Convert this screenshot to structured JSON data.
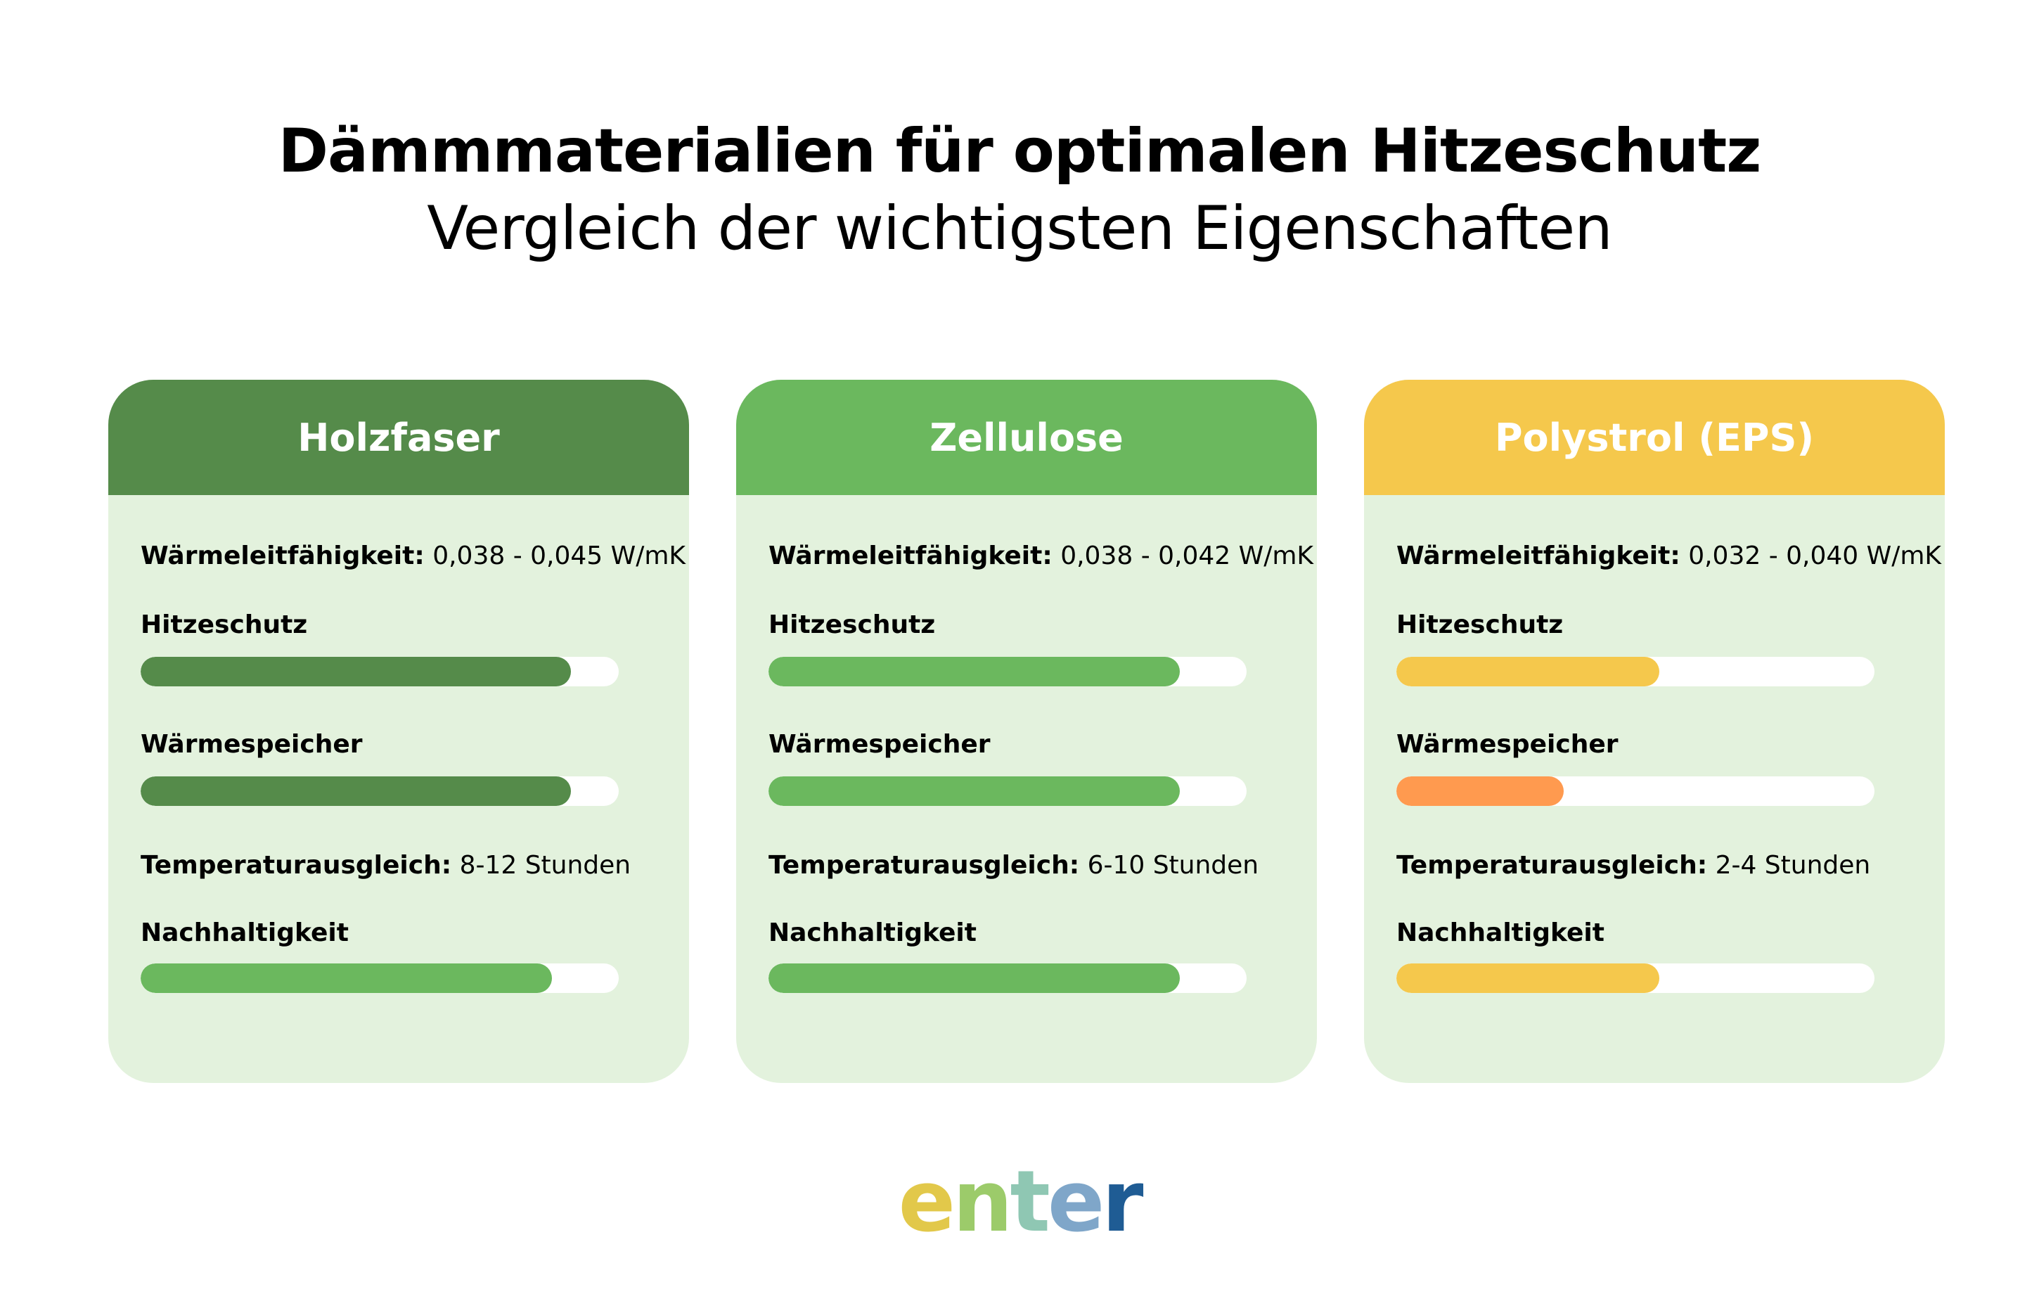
{
  "header": {
    "title": "Dämmmaterialien für optimalen Hitzeschutz",
    "subtitle": "Vergleich der wichtigsten Eigenschaften"
  },
  "cards": [
    {
      "name": "Holzfaser",
      "header_color": "#558b4a",
      "conductivity_label": "Wärmeleitfähigkeit:",
      "conductivity_value": "0,038 - 0,045 W/mK",
      "heat_protection_label": "Hitzeschutz",
      "heat_protection_level": 0.9,
      "heat_protection_color": "#558b4a",
      "heat_storage_label": "Wärmespeicher",
      "heat_storage_level": 0.9,
      "heat_storage_color": "#558b4a",
      "temp_label": "Temperaturausgleich:",
      "temp_value": "8-12 Stunden",
      "sustainability_label": "Nachhaltigkeit",
      "sustainability_level": 0.86,
      "sustainability_color": "#6bb85e"
    },
    {
      "name": "Zellulose",
      "header_color": "#6bb85e",
      "conductivity_label": "Wärmeleitfähigkeit:",
      "conductivity_value": "0,038 - 0,042 W/mK",
      "heat_protection_label": "Hitzeschutz",
      "heat_protection_level": 0.86,
      "heat_protection_color": "#6bb85e",
      "heat_storage_label": "Wärmespeicher",
      "heat_storage_level": 0.86,
      "heat_storage_color": "#6bb85e",
      "temp_label": "Temperaturausgleich:",
      "temp_value": "6-10 Stunden",
      "sustainability_label": "Nachhaltigkeit",
      "sustainability_level": 0.86,
      "sustainability_color": "#6bb85e"
    },
    {
      "name": "Polystrol (EPS)",
      "header_color": "#f5c84c",
      "conductivity_label": "Wärmeleitfähigkeit:",
      "conductivity_value": "0,032 - 0,040 W/mK",
      "heat_protection_label": "Hitzeschutz",
      "heat_protection_level": 0.55,
      "heat_protection_color": "#f5c84c",
      "heat_storage_label": "Wärmespeicher",
      "heat_storage_level": 0.35,
      "heat_storage_color": "#ff9a4f",
      "temp_label": "Temperaturausgleich:",
      "temp_value": "2-4 Stunden",
      "sustainability_label": "Nachhaltigkeit",
      "sustainability_level": 0.55,
      "sustainability_color": "#f5c84c"
    }
  ],
  "logo": {
    "text": "enter",
    "letter_colors": [
      "#e2c84a",
      "#9ccb6a",
      "#8fc7b3",
      "#7fa6c9",
      "#1f5c94"
    ]
  }
}
